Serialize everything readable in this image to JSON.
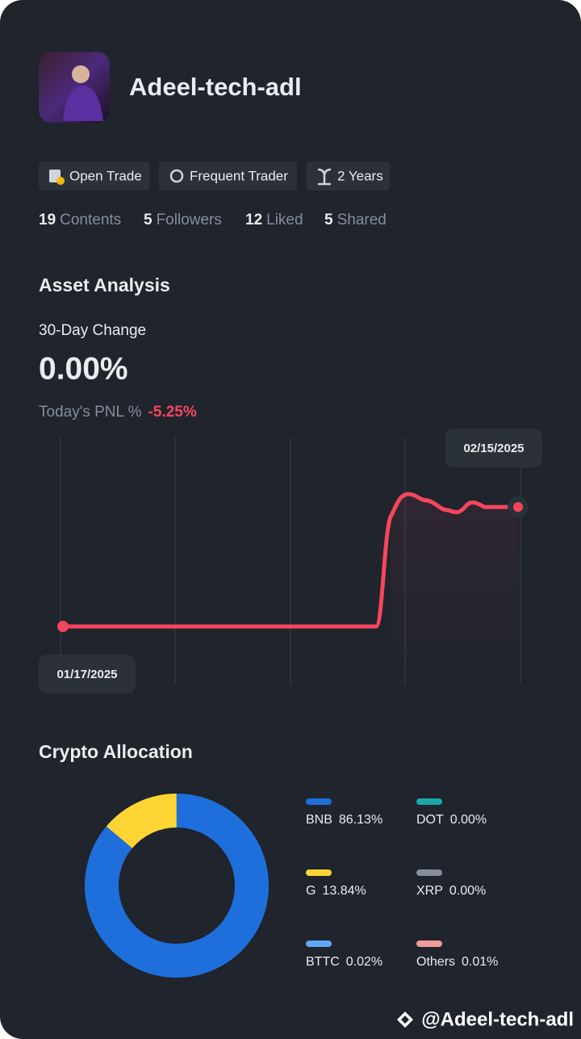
{
  "profile": {
    "name": "Adeel-tech-adl",
    "tags": [
      "Open Trade",
      "Frequent Trader",
      "2 Years"
    ],
    "stats": [
      {
        "value": 19,
        "label": "Contents"
      },
      {
        "value": 5,
        "label": "Followers"
      },
      {
        "value": 12,
        "label": "Liked"
      },
      {
        "value": 5,
        "label": "Shared"
      }
    ]
  },
  "asset_analysis": {
    "title": "Asset Analysis",
    "change_label": "30-Day Change",
    "change_value": "0.00%",
    "pnl_label": "Today's PNL %",
    "pnl_value": "-5.25%",
    "start_date": "01/17/2025",
    "end_date": "02/15/2025"
  },
  "chart_data": {
    "type": "donut",
    "title": "Crypto Allocation",
    "categories": [
      "BNB",
      "G",
      "BTTC",
      "DOT",
      "XRP",
      "Others"
    ],
    "values": [
      86.13,
      13.84,
      0.02,
      0,
      0,
      0.01
    ],
    "value_labels": [
      "86.13%",
      "13.84%",
      "0.02%",
      "0.00%",
      "0.00%",
      "0.01%"
    ],
    "colors": [
      "#1e6fdb",
      "#fcd535",
      "#5fa8f5",
      "#1ba8a8",
      "#848e9c",
      "#f29b9b"
    ]
  },
  "footer": "@Adeel-tech-adl"
}
